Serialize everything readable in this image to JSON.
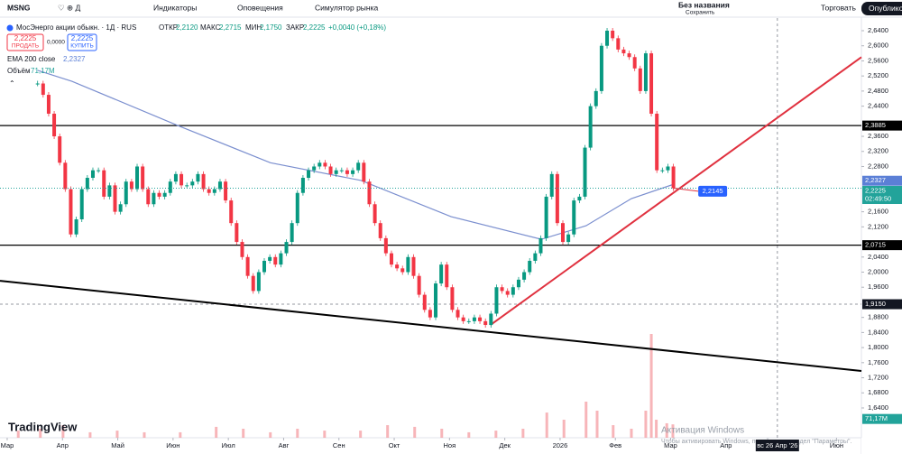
{
  "toolbar": {
    "symbol": "MSNG",
    "indicators": "Индикаторы",
    "alerts": "Оповещения",
    "replay": "Симулятор рынка",
    "layout_name": "Без названия",
    "save": "Сохранить",
    "trade": "Торговать",
    "publish": "Опубликовать"
  },
  "legend": {
    "title": "МосЭнерго акции обыкн. · 1Д · RUS",
    "open_label": "ОТКР",
    "open": "2,2120",
    "high_label": "МАКС",
    "high": "2,2715",
    "low_label": "МИН",
    "low": "2,1750",
    "close_label": "ЗАКР",
    "close": "2,2225",
    "change": "+0,0040 (+0,18%)",
    "sell_price": "2,2225",
    "sell": "ПРОДАТЬ",
    "spread": "0,0000",
    "buy_price": "2,2225",
    "buy": "КУПИТЬ",
    "ema_name": "EMA 200 close",
    "ema_value": "2,2327",
    "volume_name": "Объём",
    "volume_value": "71,17M"
  },
  "watermark": {
    "line1": "Активация Windows",
    "line2": "Чтобы активировать Windows, перейдите в раздел \"Параметры\"."
  },
  "brand": "TradingView",
  "chart_data": {
    "type": "candlestick",
    "up_color": "#089981",
    "down_color": "#f23645",
    "grid": false,
    "x": [
      0.55,
      0.65,
      0.75,
      0.85,
      0.95,
      1.05,
      1.15,
      1.25,
      1.35,
      1.45,
      1.55,
      1.65,
      1.75,
      1.85,
      1.95,
      2.05,
      2.15,
      2.25,
      2.35,
      2.45,
      2.55,
      2.65,
      2.75,
      2.85,
      2.95,
      3.05,
      3.15,
      3.25,
      3.35,
      3.45,
      3.55,
      3.65,
      3.75,
      3.85,
      3.95,
      4.05,
      4.15,
      4.25,
      4.35,
      4.45,
      4.55,
      4.65,
      4.75,
      4.85,
      4.95,
      5.05,
      5.15,
      5.25,
      5.35,
      5.45,
      5.55,
      5.65,
      5.75,
      5.85,
      5.95,
      6.05,
      6.15,
      6.25,
      6.35,
      6.45,
      6.55,
      6.65,
      6.75,
      6.85,
      6.95,
      7.05,
      7.15,
      7.25,
      7.35,
      7.45,
      7.55,
      7.65,
      7.75,
      7.85,
      7.95,
      8.05,
      8.15,
      8.25,
      8.35,
      8.45,
      8.55,
      8.65,
      8.75,
      8.85,
      8.95,
      9.05,
      9.15,
      9.25,
      9.35,
      9.45,
      9.55,
      9.65,
      9.75,
      9.85,
      9.95,
      10.05,
      10.15,
      10.25,
      10.35,
      10.45,
      10.55,
      10.65,
      10.75,
      10.85,
      10.95,
      11.05,
      11.15,
      11.25,
      11.35,
      11.45,
      11.55,
      11.65,
      11.75,
      11.85,
      11.95,
      12.05
    ],
    "values": [
      2.5,
      2.47,
      2.42,
      2.36,
      2.29,
      2.22,
      2.1,
      2.14,
      2.22,
      2.25,
      2.27,
      2.27,
      2.2,
      2.23,
      2.16,
      2.18,
      2.24,
      2.22,
      2.28,
      2.22,
      2.18,
      2.21,
      2.2,
      2.21,
      2.24,
      2.26,
      2.23,
      2.23,
      2.24,
      2.26,
      2.22,
      2.21,
      2.22,
      2.24,
      2.19,
      2.13,
      2.08,
      2.04,
      1.99,
      1.95,
      2.0,
      2.03,
      2.04,
      2.02,
      2.05,
      2.08,
      2.13,
      2.21,
      2.25,
      2.27,
      2.28,
      2.29,
      2.28,
      2.26,
      2.27,
      2.27,
      2.26,
      2.27,
      2.29,
      2.24,
      2.18,
      2.13,
      2.09,
      2.05,
      2.02,
      2.01,
      2.0,
      2.04,
      1.99,
      1.94,
      1.9,
      1.88,
      1.97,
      2.02,
      1.96,
      1.9,
      1.88,
      1.87,
      1.87,
      1.88,
      1.87,
      1.86,
      1.89,
      1.96,
      1.95,
      1.94,
      1.96,
      1.98,
      2.0,
      2.03,
      2.05,
      2.09,
      2.2,
      2.26,
      2.13,
      2.08,
      2.1,
      2.19,
      2.2,
      2.33,
      2.44,
      2.48,
      2.6,
      2.64,
      2.62,
      2.59,
      2.58,
      2.57,
      2.54,
      2.48,
      2.58,
      2.42,
      2.27,
      2.27,
      2.28,
      2.2225
    ],
    "xlim": [
      -0.13,
      15.45
    ],
    "xticks": [
      {
        "value": 0,
        "label": "Мар"
      },
      {
        "value": 1,
        "label": "Апр"
      },
      {
        "value": 2,
        "label": "Май"
      },
      {
        "value": 3,
        "label": "Июн"
      },
      {
        "value": 4,
        "label": "Июл"
      },
      {
        "value": 5,
        "label": "Авг"
      },
      {
        "value": 6,
        "label": "Сен"
      },
      {
        "value": 7,
        "label": "Окт"
      },
      {
        "value": 8,
        "label": "Ноя"
      },
      {
        "value": 9,
        "label": "Дек"
      },
      {
        "value": 10,
        "label": "2026"
      },
      {
        "value": 11,
        "label": "Фев"
      },
      {
        "value": 12,
        "label": "Мар"
      },
      {
        "value": 13,
        "label": "Апр"
      },
      {
        "value": 15,
        "label": "Июн"
      }
    ],
    "ylim": [
      1.561,
      2.6735
    ],
    "yticks": [
      {
        "value": 2.64,
        "label": "2,6400"
      },
      {
        "value": 2.6,
        "label": "2,6000"
      },
      {
        "value": 2.56,
        "label": "2,5600"
      },
      {
        "value": 2.52,
        "label": "2,5200"
      },
      {
        "value": 2.48,
        "label": "2,4800"
      },
      {
        "value": 2.44,
        "label": "2,4400"
      },
      {
        "value": 2.36,
        "label": "2,3600"
      },
      {
        "value": 2.32,
        "label": "2,3200"
      },
      {
        "value": 2.28,
        "label": "2,2800"
      },
      {
        "value": 2.16,
        "label": "2,1600"
      },
      {
        "value": 2.12,
        "label": "2,1200"
      },
      {
        "value": 2.04,
        "label": "2,0400"
      },
      {
        "value": 2.0,
        "label": "2,0000"
      },
      {
        "value": 1.96,
        "label": "1,9600"
      },
      {
        "value": 1.88,
        "label": "1,8800"
      },
      {
        "value": 1.84,
        "label": "1,8400"
      },
      {
        "value": 1.8,
        "label": "1,8000"
      },
      {
        "value": 1.76,
        "label": "1,7600"
      },
      {
        "value": 1.72,
        "label": "1,7200"
      },
      {
        "value": 1.68,
        "label": "1,6800"
      },
      {
        "value": 1.64,
        "label": "1,6400"
      }
    ],
    "ema": {
      "color": "#7b8fcf",
      "x": [
        0.55,
        1.17,
        3.13,
        4.76,
        6.4,
        8.03,
        9.66,
        10.47,
        11.29,
        12.05
      ],
      "values": [
        2.535,
        2.506,
        2.386,
        2.29,
        2.243,
        2.147,
        2.087,
        2.123,
        2.195,
        2.2327
      ],
      "value_label": {
        "value": 2.2327,
        "label": "2,2327"
      }
    },
    "last_price": {
      "value": 2.2225,
      "label": "2,2225",
      "countdown": "02:49:50",
      "color": "#22a39a"
    },
    "levels": [
      {
        "value": 2.3885,
        "label": "2,3885",
        "color": "#000000"
      },
      {
        "value": 2.0715,
        "label": "2,0715",
        "color": "#000000"
      }
    ],
    "trendlines": [
      {
        "x": [
          8.74,
          15.45
        ],
        "values": [
          1.86,
          2.57
        ],
        "color": "#e0313f"
      },
      {
        "x": [
          -0.13,
          15.45
        ],
        "values": [
          1.977,
          1.738
        ],
        "color": "#000000"
      }
    ],
    "price_note": {
      "x": 12.76,
      "value": 2.2145,
      "label": "2,2145",
      "color": "#2962ff"
    },
    "crosshair": {
      "x": 13.93,
      "x_label": "вс 26 Апр '26",
      "value": 1.915,
      "label": "1,9150"
    },
    "volume": {
      "color": "#f5a3a8",
      "x": [
        0.2,
        0.6,
        1.01,
        1.5,
        1.99,
        2.48,
        3.13,
        3.78,
        4.27,
        4.76,
        5.25,
        5.74,
        6.39,
        6.88,
        7.37,
        7.86,
        8.35,
        8.84,
        9.33,
        9.76,
        10.07,
        10.47,
        10.67,
        10.96,
        11.29,
        11.55,
        11.65,
        11.74,
        11.93,
        12.04
      ],
      "values": [
        38,
        48,
        67,
        29,
        38,
        29,
        29,
        58,
        48,
        29,
        48,
        38,
        38,
        67,
        58,
        48,
        29,
        38,
        48,
        134,
        96,
        192,
        144,
        67,
        48,
        144,
        552,
        96,
        77,
        71.17
      ],
      "vlim": [
        0,
        600
      ],
      "value_label": {
        "value": 71.17,
        "label": "71,17M"
      }
    }
  }
}
